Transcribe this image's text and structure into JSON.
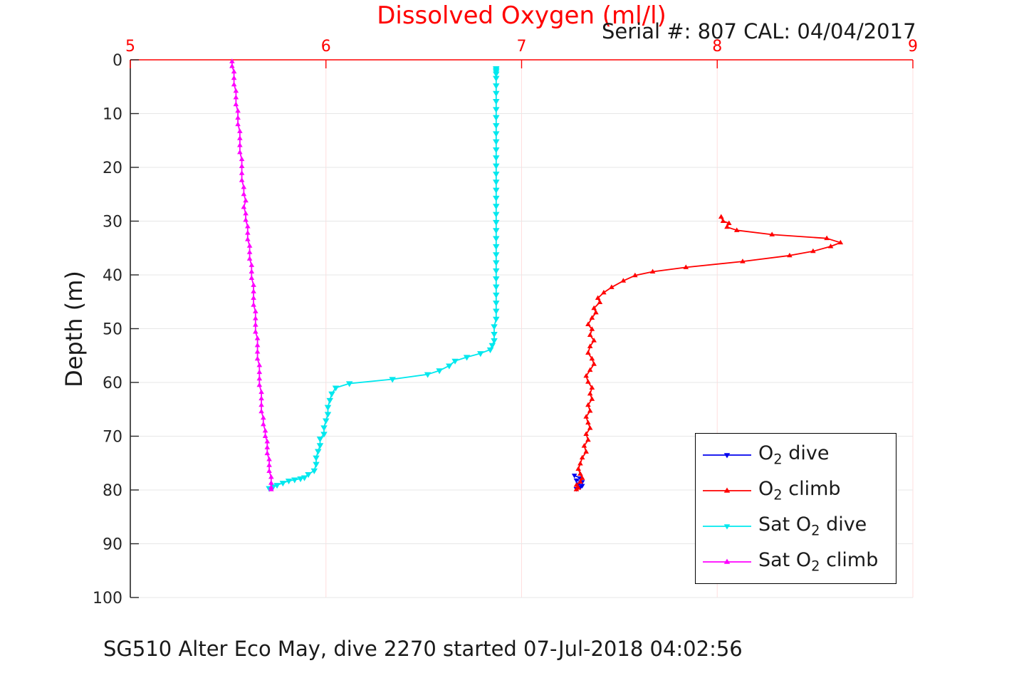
{
  "title": {
    "text": "Dissolved Oxygen (ml/l)",
    "color": "#ff0000"
  },
  "annotation": {
    "text": "Serial #: 807  CAL: 04/04/2017"
  },
  "caption": {
    "text": "SG510 Alter Eco May, dive 2270 started 07-Jul-2018 04:02:56"
  },
  "axes": {
    "x": {
      "position": "top",
      "ticks": [
        5,
        6,
        7,
        8,
        9
      ],
      "color": "#ff0000"
    },
    "y": {
      "label": "Depth (m)",
      "ticks": [
        0,
        10,
        20,
        30,
        40,
        50,
        60,
        70,
        80,
        90,
        100
      ],
      "color": "#262626"
    }
  },
  "colors": {
    "grid_x": "#ffdede",
    "grid_y": "#e7e7e7",
    "x_axis": "#ff0000",
    "y_axis": "#262626",
    "tick_label_x": "#ff0000",
    "tick_label_y": "#262626"
  },
  "legend": {
    "items": [
      {
        "pre": "O",
        "sub": "2",
        "post": " dive",
        "color": "#0000ee",
        "marker": "down"
      },
      {
        "pre": "O",
        "sub": "2",
        "post": " climb",
        "color": "#ff0000",
        "marker": "up"
      },
      {
        "pre": "Sat O",
        "sub": "2",
        "post": " dive",
        "color": "#00e8ee",
        "marker": "down"
      },
      {
        "pre": "Sat O",
        "sub": "2",
        "post": " climb",
        "color": "#ff00ff",
        "marker": "up"
      }
    ]
  },
  "chart_data": {
    "type": "line",
    "title": "Dissolved Oxygen (ml/l)",
    "xlabel": "Dissolved Oxygen (ml/l)",
    "ylabel": "Depth (m)",
    "xlim": [
      5,
      9
    ],
    "ylim": [
      0,
      100
    ],
    "y_reversed": true,
    "x_axis_location": "top",
    "grid": true,
    "legend_position": "inside lower-right",
    "point_format": "[dissolved_oxygen_ml_l, depth_m]",
    "series": [
      {
        "name": "O2 dive",
        "color": "#0000ee",
        "marker": "down",
        "marker_size": 8,
        "points": [
          [
            7.27,
            77.3
          ],
          [
            7.3,
            77.8
          ],
          [
            7.28,
            78.2
          ],
          [
            7.31,
            78.5
          ],
          [
            7.29,
            78.9
          ],
          [
            7.31,
            79.2
          ],
          [
            7.3,
            79.5
          ],
          [
            7.28,
            79.8
          ]
        ]
      },
      {
        "name": "O2 climb",
        "color": "#ff0000",
        "marker": "up",
        "marker_size": 8,
        "points": [
          [
            8.02,
            29.2
          ],
          [
            8.03,
            30.0
          ],
          [
            8.06,
            30.4
          ],
          [
            8.05,
            31.1
          ],
          [
            8.1,
            31.7
          ],
          [
            8.28,
            32.5
          ],
          [
            8.56,
            33.2
          ],
          [
            8.63,
            34.0
          ],
          [
            8.58,
            34.7
          ],
          [
            8.49,
            35.6
          ],
          [
            8.37,
            36.4
          ],
          [
            8.13,
            37.5
          ],
          [
            7.84,
            38.6
          ],
          [
            7.67,
            39.4
          ],
          [
            7.58,
            40.1
          ],
          [
            7.52,
            41.1
          ],
          [
            7.46,
            42.3
          ],
          [
            7.42,
            43.3
          ],
          [
            7.39,
            44.3
          ],
          [
            7.4,
            45.1
          ],
          [
            7.37,
            46.2
          ],
          [
            7.38,
            47.0
          ],
          [
            7.36,
            48.0
          ],
          [
            7.34,
            49.2
          ],
          [
            7.36,
            50.1
          ],
          [
            7.35,
            51.2
          ],
          [
            7.37,
            52.2
          ],
          [
            7.35,
            53.3
          ],
          [
            7.34,
            54.5
          ],
          [
            7.36,
            55.6
          ],
          [
            7.37,
            56.6
          ],
          [
            7.35,
            57.7
          ],
          [
            7.33,
            58.8
          ],
          [
            7.34,
            59.9
          ],
          [
            7.36,
            61.0
          ],
          [
            7.35,
            62.1
          ],
          [
            7.36,
            63.1
          ],
          [
            7.34,
            64.2
          ],
          [
            7.35,
            65.3
          ],
          [
            7.33,
            66.4
          ],
          [
            7.34,
            67.5
          ],
          [
            7.35,
            68.5
          ],
          [
            7.33,
            69.6
          ],
          [
            7.34,
            70.7
          ],
          [
            7.32,
            71.8
          ],
          [
            7.33,
            72.9
          ],
          [
            7.31,
            74.0
          ],
          [
            7.3,
            75.1
          ],
          [
            7.29,
            76.1
          ],
          [
            7.3,
            77.0
          ],
          [
            7.31,
            77.8
          ],
          [
            7.3,
            78.5
          ],
          [
            7.28,
            79.1
          ],
          [
            7.29,
            79.6
          ],
          [
            7.28,
            79.9
          ]
        ]
      },
      {
        "name": "Sat O2 dive",
        "color": "#00e8ee",
        "marker": "down",
        "marker_size": 10,
        "points": [
          [
            6.87,
            1.6
          ],
          [
            6.87,
            1.9
          ],
          [
            6.87,
            2.2
          ],
          [
            6.87,
            2.6
          ],
          [
            6.87,
            3.4
          ],
          [
            6.87,
            4.8
          ],
          [
            6.87,
            6.2
          ],
          [
            6.87,
            7.7
          ],
          [
            6.87,
            9.2
          ],
          [
            6.87,
            10.7
          ],
          [
            6.87,
            12.2
          ],
          [
            6.87,
            13.7
          ],
          [
            6.87,
            15.2
          ],
          [
            6.87,
            16.7
          ],
          [
            6.87,
            18.2
          ],
          [
            6.87,
            19.7
          ],
          [
            6.87,
            21.2
          ],
          [
            6.87,
            22.7
          ],
          [
            6.87,
            24.2
          ],
          [
            6.87,
            25.7
          ],
          [
            6.87,
            27.2
          ],
          [
            6.87,
            28.7
          ],
          [
            6.87,
            30.2
          ],
          [
            6.87,
            31.7
          ],
          [
            6.87,
            33.2
          ],
          [
            6.87,
            34.7
          ],
          [
            6.87,
            36.2
          ],
          [
            6.87,
            37.7
          ],
          [
            6.87,
            39.2
          ],
          [
            6.87,
            40.7
          ],
          [
            6.87,
            42.2
          ],
          [
            6.87,
            43.7
          ],
          [
            6.87,
            45.2
          ],
          [
            6.87,
            46.7
          ],
          [
            6.87,
            48.2
          ],
          [
            6.86,
            49.6
          ],
          [
            6.86,
            51.0
          ],
          [
            6.86,
            52.2
          ],
          [
            6.85,
            53.1
          ],
          [
            6.84,
            53.9
          ],
          [
            6.79,
            54.6
          ],
          [
            6.72,
            55.3
          ],
          [
            6.66,
            56.0
          ],
          [
            6.63,
            56.9
          ],
          [
            6.58,
            57.8
          ],
          [
            6.52,
            58.5
          ],
          [
            6.34,
            59.4
          ],
          [
            6.12,
            60.2
          ],
          [
            6.05,
            61.0
          ],
          [
            6.03,
            62.1
          ],
          [
            6.02,
            63.3
          ],
          [
            6.01,
            64.6
          ],
          [
            6.01,
            65.9
          ],
          [
            6.0,
            67.1
          ],
          [
            5.99,
            68.4
          ],
          [
            5.99,
            69.6
          ],
          [
            5.97,
            70.5
          ],
          [
            5.97,
            71.7
          ],
          [
            5.96,
            72.8
          ],
          [
            5.95,
            74.0
          ],
          [
            5.95,
            75.2
          ],
          [
            5.94,
            76.4
          ],
          [
            5.91,
            77.1
          ],
          [
            5.89,
            77.7
          ],
          [
            5.87,
            77.9
          ],
          [
            5.84,
            78.1
          ],
          [
            5.81,
            78.3
          ],
          [
            5.78,
            78.7
          ],
          [
            5.75,
            79.1
          ],
          [
            5.73,
            79.4
          ],
          [
            5.71,
            79.7
          ]
        ]
      },
      {
        "name": "Sat O2 climb",
        "color": "#ff00ff",
        "marker": "up",
        "marker_size": 8,
        "points": [
          [
            5.52,
            0.3
          ],
          [
            5.52,
            1.2
          ],
          [
            5.53,
            2.2
          ],
          [
            5.53,
            3.4
          ],
          [
            5.53,
            4.6
          ],
          [
            5.54,
            5.8
          ],
          [
            5.54,
            7.0
          ],
          [
            5.54,
            8.3
          ],
          [
            5.55,
            9.5
          ],
          [
            5.55,
            10.8
          ],
          [
            5.55,
            12.0
          ],
          [
            5.56,
            13.3
          ],
          [
            5.56,
            14.6
          ],
          [
            5.56,
            15.9
          ],
          [
            5.56,
            17.2
          ],
          [
            5.57,
            18.5
          ],
          [
            5.57,
            19.8
          ],
          [
            5.57,
            21.1
          ],
          [
            5.57,
            22.4
          ],
          [
            5.58,
            23.7
          ],
          [
            5.58,
            25.0
          ],
          [
            5.59,
            26.2
          ],
          [
            5.58,
            27.4
          ],
          [
            5.59,
            28.6
          ],
          [
            5.59,
            29.8
          ],
          [
            5.6,
            31.0
          ],
          [
            5.6,
            32.2
          ],
          [
            5.6,
            33.4
          ],
          [
            5.61,
            34.6
          ],
          [
            5.61,
            35.8
          ],
          [
            5.61,
            37.0
          ],
          [
            5.62,
            38.2
          ],
          [
            5.62,
            39.4
          ],
          [
            5.62,
            40.6
          ],
          [
            5.63,
            41.9
          ],
          [
            5.63,
            43.1
          ],
          [
            5.63,
            44.3
          ],
          [
            5.63,
            45.6
          ],
          [
            5.64,
            46.8
          ],
          [
            5.64,
            48.1
          ],
          [
            5.64,
            49.3
          ],
          [
            5.64,
            50.6
          ],
          [
            5.65,
            51.8
          ],
          [
            5.65,
            53.1
          ],
          [
            5.65,
            54.3
          ],
          [
            5.65,
            55.6
          ],
          [
            5.66,
            56.8
          ],
          [
            5.66,
            58.1
          ],
          [
            5.66,
            59.3
          ],
          [
            5.66,
            60.5
          ],
          [
            5.67,
            61.8
          ],
          [
            5.67,
            63.0
          ],
          [
            5.67,
            64.2
          ],
          [
            5.67,
            65.4
          ],
          [
            5.68,
            66.6
          ],
          [
            5.68,
            67.8
          ],
          [
            5.69,
            69.0
          ],
          [
            5.69,
            70.0
          ],
          [
            5.7,
            71.0
          ],
          [
            5.7,
            72.1
          ],
          [
            5.7,
            73.2
          ],
          [
            5.71,
            74.3
          ],
          [
            5.71,
            75.4
          ],
          [
            5.71,
            76.5
          ],
          [
            5.72,
            77.6
          ],
          [
            5.72,
            78.7
          ],
          [
            5.72,
            79.5
          ],
          [
            5.72,
            79.9
          ]
        ]
      }
    ]
  }
}
